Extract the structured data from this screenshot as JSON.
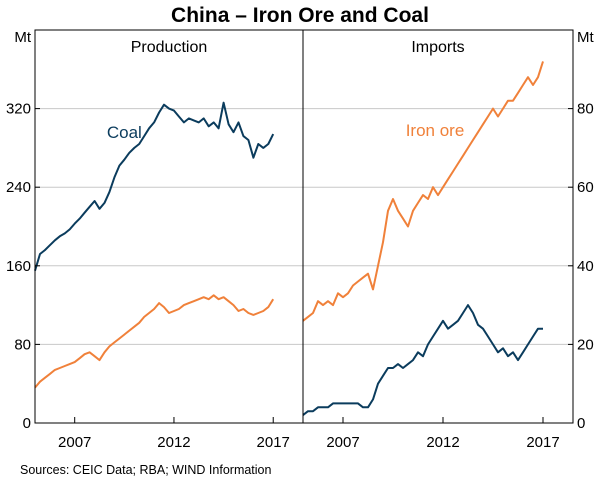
{
  "chart_data": [
    {
      "type": "line",
      "title": "China – Iron Ore and Coal",
      "panel_title": "Production",
      "unit": "Mt",
      "ylim": [
        0,
        400
      ],
      "yticks": [
        0,
        80,
        160,
        240,
        320
      ],
      "xlim": [
        2005.0,
        2018.5
      ],
      "xticks": [
        2007,
        2012,
        2017
      ],
      "grid": true,
      "series": [
        {
          "name": "Coal",
          "color": "#0b3c5d",
          "points": [
            [
              2005.0,
              155
            ],
            [
              2005.25,
              172
            ],
            [
              2005.5,
              176
            ],
            [
              2005.75,
              181
            ],
            [
              2006.0,
              186
            ],
            [
              2006.25,
              190
            ],
            [
              2006.5,
              193
            ],
            [
              2006.75,
              197
            ],
            [
              2007.0,
              203
            ],
            [
              2007.25,
              208
            ],
            [
              2007.5,
              214
            ],
            [
              2007.75,
              220
            ],
            [
              2008.0,
              226
            ],
            [
              2008.25,
              218
            ],
            [
              2008.5,
              224
            ],
            [
              2008.75,
              235
            ],
            [
              2009.0,
              250
            ],
            [
              2009.25,
              262
            ],
            [
              2009.5,
              268
            ],
            [
              2009.75,
              275
            ],
            [
              2010.0,
              280
            ],
            [
              2010.25,
              284
            ],
            [
              2010.5,
              292
            ],
            [
              2010.75,
              300
            ],
            [
              2011.0,
              306
            ],
            [
              2011.25,
              316
            ],
            [
              2011.5,
              324
            ],
            [
              2011.75,
              320
            ],
            [
              2012.0,
              318
            ],
            [
              2012.25,
              312
            ],
            [
              2012.5,
              306
            ],
            [
              2012.75,
              310
            ],
            [
              2013.0,
              308
            ],
            [
              2013.25,
              306
            ],
            [
              2013.5,
              310
            ],
            [
              2013.75,
              302
            ],
            [
              2014.0,
              306
            ],
            [
              2014.25,
              300
            ],
            [
              2014.5,
              326
            ],
            [
              2014.75,
              304
            ],
            [
              2015.0,
              296
            ],
            [
              2015.25,
              306
            ],
            [
              2015.5,
              292
            ],
            [
              2015.75,
              288
            ],
            [
              2016.0,
              270
            ],
            [
              2016.25,
              284
            ],
            [
              2016.5,
              280
            ],
            [
              2016.75,
              284
            ],
            [
              2017.0,
              294
            ]
          ]
        },
        {
          "name": "Iron ore",
          "color": "#f0813a",
          "points": [
            [
              2005.0,
              36
            ],
            [
              2005.25,
              42
            ],
            [
              2005.5,
              46
            ],
            [
              2005.75,
              50
            ],
            [
              2006.0,
              54
            ],
            [
              2006.25,
              56
            ],
            [
              2006.5,
              58
            ],
            [
              2006.75,
              60
            ],
            [
              2007.0,
              62
            ],
            [
              2007.25,
              66
            ],
            [
              2007.5,
              70
            ],
            [
              2007.75,
              72
            ],
            [
              2008.0,
              68
            ],
            [
              2008.25,
              64
            ],
            [
              2008.5,
              72
            ],
            [
              2008.75,
              78
            ],
            [
              2009.0,
              82
            ],
            [
              2009.25,
              86
            ],
            [
              2009.5,
              90
            ],
            [
              2009.75,
              94
            ],
            [
              2010.0,
              98
            ],
            [
              2010.25,
              102
            ],
            [
              2010.5,
              108
            ],
            [
              2010.75,
              112
            ],
            [
              2011.0,
              116
            ],
            [
              2011.25,
              122
            ],
            [
              2011.5,
              118
            ],
            [
              2011.75,
              112
            ],
            [
              2012.0,
              114
            ],
            [
              2012.25,
              116
            ],
            [
              2012.5,
              120
            ],
            [
              2012.75,
              122
            ],
            [
              2013.0,
              124
            ],
            [
              2013.25,
              126
            ],
            [
              2013.5,
              128
            ],
            [
              2013.75,
              126
            ],
            [
              2014.0,
              130
            ],
            [
              2014.25,
              126
            ],
            [
              2014.5,
              128
            ],
            [
              2014.75,
              124
            ],
            [
              2015.0,
              120
            ],
            [
              2015.25,
              114
            ],
            [
              2015.5,
              116
            ],
            [
              2015.75,
              112
            ],
            [
              2016.0,
              110
            ],
            [
              2016.25,
              112
            ],
            [
              2016.5,
              114
            ],
            [
              2016.75,
              118
            ],
            [
              2017.0,
              126
            ]
          ]
        }
      ]
    },
    {
      "type": "line",
      "panel_title": "Imports",
      "unit": "Mt",
      "ylim": [
        0,
        100
      ],
      "yticks": [
        0,
        20,
        40,
        60,
        80
      ],
      "xlim": [
        2005.0,
        2018.5
      ],
      "xticks": [
        2007,
        2012,
        2017
      ],
      "grid": true,
      "series": [
        {
          "name": "Iron ore",
          "color": "#f0813a",
          "points": [
            [
              2005.0,
              26
            ],
            [
              2005.25,
              27
            ],
            [
              2005.5,
              28
            ],
            [
              2005.75,
              31
            ],
            [
              2006.0,
              30
            ],
            [
              2006.25,
              31
            ],
            [
              2006.5,
              30
            ],
            [
              2006.75,
              33
            ],
            [
              2007.0,
              32
            ],
            [
              2007.25,
              33
            ],
            [
              2007.5,
              35
            ],
            [
              2007.75,
              36
            ],
            [
              2008.0,
              37
            ],
            [
              2008.25,
              38
            ],
            [
              2008.5,
              34
            ],
            [
              2008.75,
              40
            ],
            [
              2009.0,
              46
            ],
            [
              2009.25,
              54
            ],
            [
              2009.5,
              57
            ],
            [
              2009.75,
              54
            ],
            [
              2010.0,
              52
            ],
            [
              2010.25,
              50
            ],
            [
              2010.5,
              54
            ],
            [
              2010.75,
              56
            ],
            [
              2011.0,
              58
            ],
            [
              2011.25,
              57
            ],
            [
              2011.5,
              60
            ],
            [
              2011.75,
              58
            ],
            [
              2012.0,
              60
            ],
            [
              2012.25,
              62
            ],
            [
              2012.5,
              64
            ],
            [
              2012.75,
              66
            ],
            [
              2013.0,
              68
            ],
            [
              2013.25,
              70
            ],
            [
              2013.5,
              72
            ],
            [
              2013.75,
              74
            ],
            [
              2014.0,
              76
            ],
            [
              2014.25,
              78
            ],
            [
              2014.5,
              80
            ],
            [
              2014.75,
              78
            ],
            [
              2015.0,
              80
            ],
            [
              2015.25,
              82
            ],
            [
              2015.5,
              82
            ],
            [
              2015.75,
              84
            ],
            [
              2016.0,
              86
            ],
            [
              2016.25,
              88
            ],
            [
              2016.5,
              86
            ],
            [
              2016.75,
              88
            ],
            [
              2017.0,
              92
            ]
          ]
        },
        {
          "name": "Coal",
          "color": "#0b3c5d",
          "points": [
            [
              2005.0,
              2
            ],
            [
              2005.25,
              3
            ],
            [
              2005.5,
              3
            ],
            [
              2005.75,
              4
            ],
            [
              2006.0,
              4
            ],
            [
              2006.25,
              4
            ],
            [
              2006.5,
              5
            ],
            [
              2006.75,
              5
            ],
            [
              2007.0,
              5
            ],
            [
              2007.25,
              5
            ],
            [
              2007.5,
              5
            ],
            [
              2007.75,
              5
            ],
            [
              2008.0,
              4
            ],
            [
              2008.25,
              4
            ],
            [
              2008.5,
              6
            ],
            [
              2008.75,
              10
            ],
            [
              2009.0,
              12
            ],
            [
              2009.25,
              14
            ],
            [
              2009.5,
              14
            ],
            [
              2009.75,
              15
            ],
            [
              2010.0,
              14
            ],
            [
              2010.25,
              15
            ],
            [
              2010.5,
              16
            ],
            [
              2010.75,
              18
            ],
            [
              2011.0,
              17
            ],
            [
              2011.25,
              20
            ],
            [
              2011.5,
              22
            ],
            [
              2011.75,
              24
            ],
            [
              2012.0,
              26
            ],
            [
              2012.25,
              24
            ],
            [
              2012.5,
              25
            ],
            [
              2012.75,
              26
            ],
            [
              2013.0,
              28
            ],
            [
              2013.25,
              30
            ],
            [
              2013.5,
              28
            ],
            [
              2013.75,
              25
            ],
            [
              2014.0,
              24
            ],
            [
              2014.25,
              22
            ],
            [
              2014.5,
              20
            ],
            [
              2014.75,
              18
            ],
            [
              2015.0,
              19
            ],
            [
              2015.25,
              17
            ],
            [
              2015.5,
              18
            ],
            [
              2015.75,
              16
            ],
            [
              2016.0,
              18
            ],
            [
              2016.25,
              20
            ],
            [
              2016.5,
              22
            ],
            [
              2016.75,
              24
            ],
            [
              2017.0,
              24
            ]
          ]
        }
      ]
    }
  ],
  "source": "Sources:   CEIC Data; RBA; WIND Information"
}
